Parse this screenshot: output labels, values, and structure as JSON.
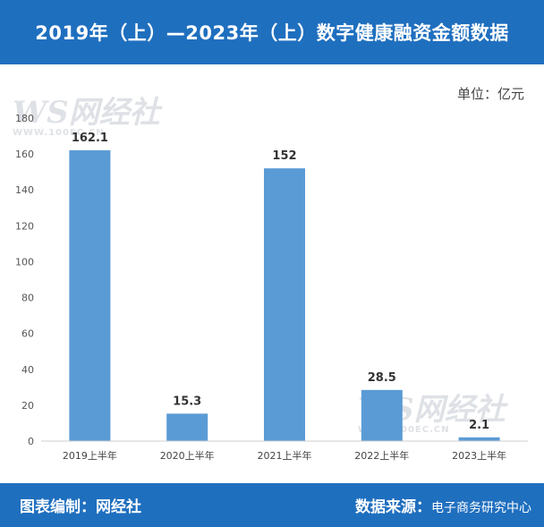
{
  "header": {
    "title": "2019年（上）—2023年（上）数字健康融资金额数据"
  },
  "unit_label": "单位：亿元",
  "watermark": {
    "logo": "WS网经社",
    "sub": "WWW.100EC.CN"
  },
  "footer": {
    "left": "图表编制：网经社",
    "right_label": "数据来源：",
    "right_value": "电子商务研究中心"
  },
  "colors": {
    "header_bg": "#1f6fbf",
    "bar": "#5b9bd5"
  },
  "chart_data": {
    "type": "bar",
    "categories": [
      "2019上半年",
      "2020上半年",
      "2021上半年",
      "2022上半年",
      "2023上半年"
    ],
    "values": [
      162.1,
      15.3,
      152,
      28.5,
      2.1
    ],
    "value_labels": [
      "162.1",
      "15.3",
      "152",
      "28.5",
      "2.1"
    ],
    "ylim": [
      0,
      180
    ],
    "yticks": [
      0,
      20,
      40,
      60,
      80,
      100,
      120,
      140,
      160,
      180
    ],
    "grid": false,
    "title": "",
    "xlabel": "",
    "ylabel": ""
  }
}
